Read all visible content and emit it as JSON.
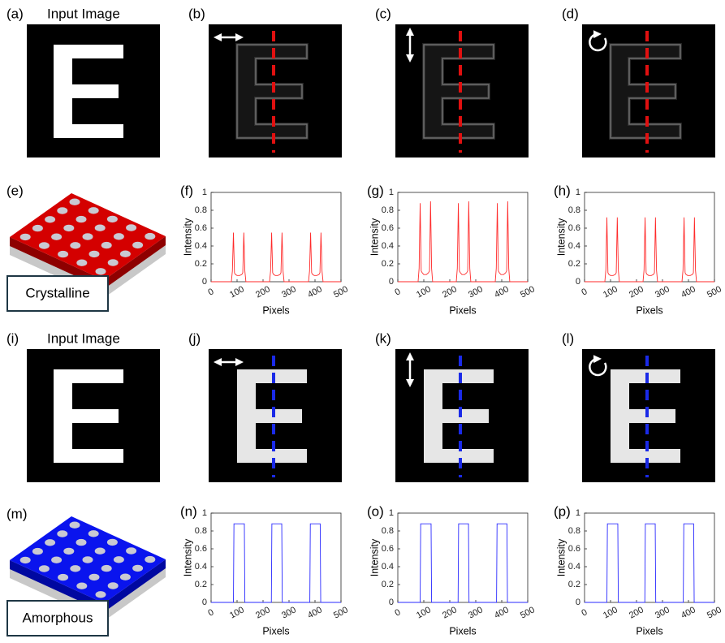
{
  "images": [
    {
      "label": "(a)",
      "title": "Input Image"
    },
    {
      "label": "(b)"
    },
    {
      "label": "(c)"
    },
    {
      "label": "(d)"
    },
    {
      "label": "(i)",
      "title": "Input Image"
    },
    {
      "label": "(j)"
    },
    {
      "label": "(k)"
    },
    {
      "label": "(l)"
    }
  ],
  "materials": [
    {
      "label": "(e)",
      "name": "Crystalline"
    },
    {
      "label": "(m)",
      "name": "Amorphous"
    }
  ],
  "chart_data": [
    {
      "type": "line",
      "panel_label": "(f)",
      "xlabel": "Pixels",
      "ylabel": "Intensity",
      "color": "#ff2a2a",
      "xlim": [
        0,
        500
      ],
      "ylim": [
        0,
        1
      ],
      "xticks": [
        0,
        100,
        200,
        300,
        400,
        500
      ],
      "yticks": [
        0,
        0.2,
        0.4,
        0.6,
        0.8,
        1
      ],
      "x": [
        0,
        78,
        82,
        86,
        90,
        94,
        100,
        110,
        118,
        122,
        126,
        130,
        134,
        225,
        229,
        233,
        237,
        241,
        247,
        257,
        265,
        269,
        273,
        277,
        281,
        375,
        379,
        383,
        387,
        391,
        397,
        407,
        415,
        419,
        423,
        427,
        431,
        500
      ],
      "values": [
        0,
        0,
        0.12,
        0.55,
        0.1,
        0.08,
        0.07,
        0.07,
        0.08,
        0.1,
        0.55,
        0.12,
        0,
        0,
        0.12,
        0.55,
        0.1,
        0.08,
        0.07,
        0.07,
        0.08,
        0.1,
        0.55,
        0.12,
        0,
        0,
        0.12,
        0.55,
        0.1,
        0.08,
        0.07,
        0.07,
        0.08,
        0.1,
        0.55,
        0.12,
        0,
        0
      ]
    },
    {
      "type": "line",
      "panel_label": "(g)",
      "xlabel": "Pixels",
      "ylabel": "Intensity",
      "color": "#ff2a2a",
      "xlim": [
        0,
        500
      ],
      "ylim": [
        0,
        1
      ],
      "xticks": [
        0,
        100,
        200,
        300,
        400,
        500
      ],
      "yticks": [
        0,
        0.2,
        0.4,
        0.6,
        0.8,
        1
      ],
      "x": [
        0,
        78,
        82,
        86,
        90,
        94,
        100,
        110,
        118,
        122,
        126,
        130,
        134,
        225,
        229,
        233,
        237,
        241,
        247,
        257,
        265,
        269,
        273,
        277,
        281,
        375,
        379,
        383,
        387,
        391,
        397,
        407,
        415,
        419,
        423,
        427,
        431,
        500
      ],
      "values": [
        0,
        0,
        0.15,
        0.88,
        0.12,
        0.1,
        0.08,
        0.08,
        0.1,
        0.12,
        0.9,
        0.15,
        0,
        0,
        0.15,
        0.88,
        0.12,
        0.1,
        0.08,
        0.08,
        0.1,
        0.12,
        0.9,
        0.15,
        0,
        0,
        0.15,
        0.88,
        0.12,
        0.1,
        0.08,
        0.08,
        0.1,
        0.12,
        0.9,
        0.15,
        0,
        0
      ]
    },
    {
      "type": "line",
      "panel_label": "(h)",
      "xlabel": "Pixels",
      "ylabel": "Intensity",
      "color": "#ff2a2a",
      "xlim": [
        0,
        500
      ],
      "ylim": [
        0,
        1
      ],
      "xticks": [
        0,
        100,
        200,
        300,
        400,
        500
      ],
      "yticks": [
        0,
        0.2,
        0.4,
        0.6,
        0.8,
        1
      ],
      "x": [
        0,
        78,
        82,
        86,
        90,
        94,
        100,
        110,
        118,
        122,
        126,
        130,
        134,
        225,
        229,
        233,
        237,
        241,
        247,
        257,
        265,
        269,
        273,
        277,
        281,
        375,
        379,
        383,
        387,
        391,
        397,
        407,
        415,
        419,
        423,
        427,
        431,
        500
      ],
      "values": [
        0,
        0,
        0.13,
        0.72,
        0.1,
        0.08,
        0.07,
        0.07,
        0.08,
        0.1,
        0.72,
        0.13,
        0,
        0,
        0.13,
        0.72,
        0.1,
        0.08,
        0.07,
        0.07,
        0.08,
        0.1,
        0.72,
        0.13,
        0,
        0,
        0.13,
        0.72,
        0.1,
        0.08,
        0.07,
        0.07,
        0.08,
        0.1,
        0.72,
        0.13,
        0,
        0
      ]
    },
    {
      "type": "line",
      "panel_label": "(n)",
      "xlabel": "Pixels",
      "ylabel": "Intensity",
      "color": "#2a2aff",
      "xlim": [
        0,
        500
      ],
      "ylim": [
        0,
        1
      ],
      "xticks": [
        0,
        100,
        200,
        300,
        400,
        500
      ],
      "yticks": [
        0,
        0.2,
        0.4,
        0.6,
        0.8,
        1
      ],
      "x": [
        0,
        86,
        88,
        128,
        130,
        232,
        234,
        272,
        274,
        380,
        382,
        420,
        422,
        500
      ],
      "values": [
        0,
        0,
        0.88,
        0.88,
        0,
        0,
        0.88,
        0.88,
        0,
        0,
        0.88,
        0.88,
        0,
        0
      ]
    },
    {
      "type": "line",
      "panel_label": "(o)",
      "xlabel": "Pixels",
      "ylabel": "Intensity",
      "color": "#2a2aff",
      "xlim": [
        0,
        500
      ],
      "ylim": [
        0,
        1
      ],
      "xticks": [
        0,
        100,
        200,
        300,
        400,
        500
      ],
      "yticks": [
        0,
        0.2,
        0.4,
        0.6,
        0.8,
        1
      ],
      "x": [
        0,
        86,
        88,
        128,
        130,
        232,
        234,
        272,
        274,
        380,
        382,
        420,
        422,
        500
      ],
      "values": [
        0,
        0,
        0.88,
        0.88,
        0,
        0,
        0.88,
        0.88,
        0,
        0,
        0.88,
        0.88,
        0,
        0
      ]
    },
    {
      "type": "line",
      "panel_label": "(p)",
      "xlabel": "Pixels",
      "ylabel": "Intensity",
      "color": "#2a2aff",
      "xlim": [
        0,
        500
      ],
      "ylim": [
        0,
        1
      ],
      "xticks": [
        0,
        100,
        200,
        300,
        400,
        500
      ],
      "yticks": [
        0,
        0.2,
        0.4,
        0.6,
        0.8,
        1
      ],
      "x": [
        0,
        86,
        88,
        128,
        130,
        232,
        234,
        272,
        274,
        380,
        382,
        420,
        422,
        500
      ],
      "values": [
        0,
        0,
        0.88,
        0.88,
        0,
        0,
        0.88,
        0.88,
        0,
        0,
        0.88,
        0.88,
        0,
        0
      ]
    }
  ]
}
